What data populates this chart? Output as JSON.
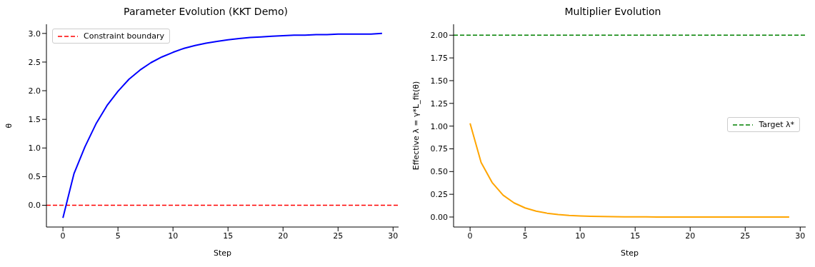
{
  "chart_data": [
    {
      "type": "line",
      "title": "Parameter Evolution (KKT Demo)",
      "xlabel": "Step",
      "ylabel": "θ",
      "x": [
        0,
        1,
        2,
        3,
        4,
        5,
        6,
        7,
        8,
        9,
        10,
        11,
        12,
        13,
        14,
        15,
        16,
        17,
        18,
        19,
        20,
        21,
        22,
        23,
        24,
        25,
        26,
        27,
        28,
        29
      ],
      "series": [
        {
          "color": "#0000ff",
          "values": [
            -0.22,
            0.55,
            1.02,
            1.42,
            1.74,
            1.99,
            2.2,
            2.36,
            2.49,
            2.59,
            2.67,
            2.74,
            2.79,
            2.83,
            2.86,
            2.89,
            2.91,
            2.93,
            2.94,
            2.95,
            2.96,
            2.97,
            2.97,
            2.98,
            2.98,
            2.99,
            2.99,
            2.99,
            2.99,
            3.0
          ]
        }
      ],
      "ref_lines": [
        {
          "axis": "y",
          "value": 0,
          "label": "Constraint boundary",
          "color": "#ff0000",
          "line_style": "dashed"
        }
      ],
      "xlim": [
        -1.5,
        30.5
      ],
      "xticks": [
        0,
        5,
        10,
        15,
        20,
        25,
        30
      ],
      "ylim": [
        -0.38,
        3.16
      ],
      "yticks": [
        {
          "value": 0,
          "label": "0.0"
        },
        {
          "value": 0.5,
          "label": "0.5"
        },
        {
          "value": 1,
          "label": "1.0"
        },
        {
          "value": 1.5,
          "label": "1.5"
        },
        {
          "value": 2,
          "label": "2.0"
        },
        {
          "value": 2.5,
          "label": "2.5"
        },
        {
          "value": 3,
          "label": "3.0"
        }
      ],
      "legend": "top left",
      "marker": "none",
      "line_style": "solid"
    },
    {
      "type": "line",
      "title": "Multiplier Evolution",
      "xlabel": "Step",
      "ylabel": "Effective λ = γ*L_fit(θ)",
      "x": [
        0,
        1,
        2,
        3,
        4,
        5,
        6,
        7,
        8,
        9,
        10,
        11,
        12,
        13,
        14,
        15,
        16,
        17,
        18,
        19,
        20,
        21,
        22,
        23,
        24,
        25,
        26,
        27,
        28,
        29
      ],
      "series": [
        {
          "color": "#ffa500",
          "values": [
            1.03,
            0.6,
            0.38,
            0.24,
            0.155,
            0.1,
            0.065,
            0.042,
            0.027,
            0.018,
            0.012,
            0.008,
            0.005,
            0.003,
            0.002,
            0.001,
            0.001,
            0,
            0,
            0,
            0,
            0,
            0,
            0,
            0,
            0,
            0,
            0,
            0,
            0
          ]
        }
      ],
      "ref_lines": [
        {
          "axis": "y",
          "value": 2,
          "label": "Target λ*",
          "color": "#008000",
          "line_style": "dashed"
        }
      ],
      "xlim": [
        -1.5,
        30.5
      ],
      "xticks": [
        0,
        5,
        10,
        15,
        20,
        25,
        30
      ],
      "ylim": [
        -0.11,
        2.12
      ],
      "yticks": [
        {
          "value": 0,
          "label": "0.00"
        },
        {
          "value": 0.25,
          "label": "0.25"
        },
        {
          "value": 0.5,
          "label": "0.50"
        },
        {
          "value": 0.75,
          "label": "0.75"
        },
        {
          "value": 1,
          "label": "1.00"
        },
        {
          "value": 1.25,
          "label": "1.25"
        },
        {
          "value": 1.5,
          "label": "1.50"
        },
        {
          "value": 1.75,
          "label": "1.75"
        },
        {
          "value": 2,
          "label": "2.00"
        }
      ],
      "legend": "right",
      "marker": "none",
      "line_style": "solid"
    }
  ]
}
